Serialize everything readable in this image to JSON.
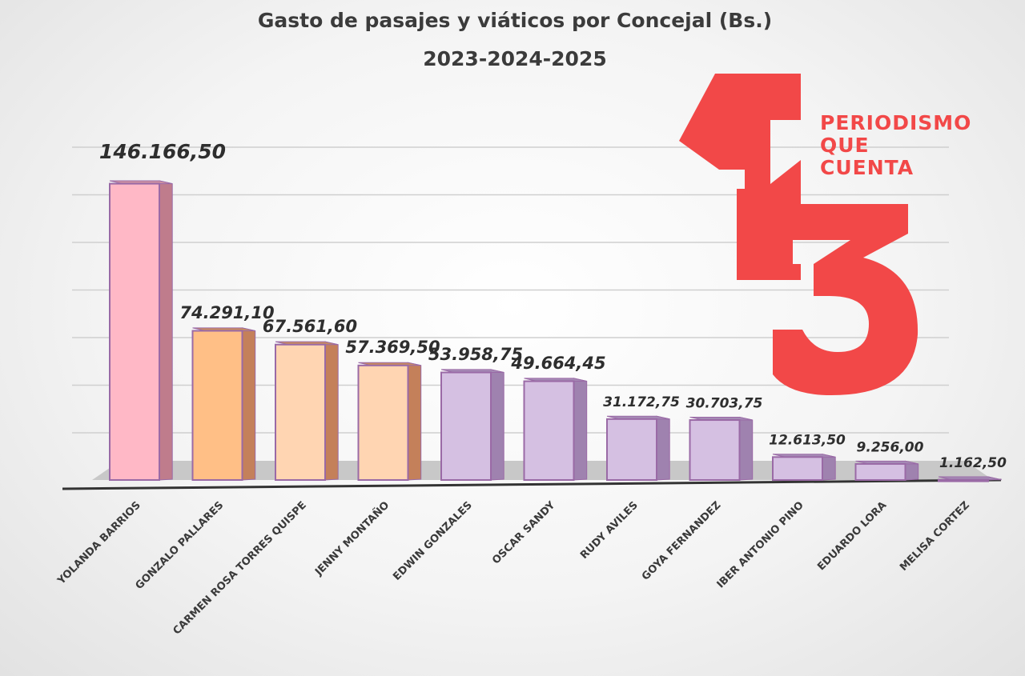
{
  "chart_data": {
    "type": "bar",
    "title": "Gasto de pasajes y viáticos por Concejal (Bs.)",
    "subtitle": "2023-2024-2025",
    "xlabel": "",
    "ylabel": "",
    "ylim": [
      0,
      160000
    ],
    "grid": true,
    "legend": "none",
    "categories": [
      "YOLANDA BARRIOS",
      "GONZALO PALLARES",
      "CARMEN ROSA TORRES QUISPE",
      "JENNY MONTAÑO",
      "EDWIN GONZALES",
      "OSCAR SANDY",
      "RUDY AVILES",
      "GOYA FERNANDEZ",
      "IBER ANTONIO PINO",
      "EDUARDO LORA",
      "MELISA CORTEZ"
    ],
    "values": [
      146166.5,
      74291.1,
      67561.6,
      57369.5,
      53958.75,
      49664.45,
      31172.75,
      30703.75,
      12613.5,
      9256.0,
      1162.5
    ],
    "value_labels": [
      "146.166,50",
      "74.291,10",
      "67.561,60",
      "57.369,50",
      "53.958,75",
      "49.664,45",
      "31.172,75",
      "30.703,75",
      "12.613,50",
      "9.256,00",
      "1.162,50"
    ],
    "colors": {
      "front": [
        "#ffb8c6",
        "#ffbf86",
        "#ffd5b2",
        "#ffd5b2",
        "#d5c0e2",
        "#d5c0e2",
        "#d5c0e2",
        "#d5c0e2",
        "#d5c0e2",
        "#d5c0e2",
        "#d5c0e2"
      ],
      "side": [
        "#bf7c8c",
        "#c4805a",
        "#c4805a",
        "#c4805a",
        "#9f82af",
        "#9f82af",
        "#9f82af",
        "#9f82af",
        "#9f82af",
        "#9f82af",
        "#9f82af"
      ],
      "top": [
        "#cf92a2",
        "#c98b60",
        "#c98b60",
        "#c98b60",
        "#a58ab5",
        "#a58ab5",
        "#a58ab5",
        "#a58ab5",
        "#a58ab5",
        "#a58ab5",
        "#a58ab5"
      ],
      "outline": "#9a6aa6",
      "floor": "#c8c8c8",
      "baseline": "#333333",
      "grid": "#cfcfcf"
    }
  },
  "logo": {
    "mark": "13",
    "lines": [
      "PERIODISMO",
      "QUE",
      "CUENTA"
    ],
    "color": "#f24848"
  }
}
